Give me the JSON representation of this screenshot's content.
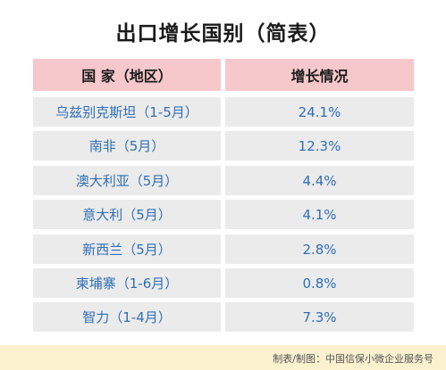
{
  "title": "出口增长国别（简表）",
  "table": {
    "headers": [
      "国 家（地区）",
      "增长情况"
    ],
    "rows": [
      {
        "country": "乌兹别克斯坦（1-5月）",
        "growth": "24.1%"
      },
      {
        "country": "南非（5月）",
        "growth": "12.3%"
      },
      {
        "country": "澳大利亚（5月）",
        "growth": "4.4%"
      },
      {
        "country": "意大利（5月）",
        "growth": "4.1%"
      },
      {
        "country": "新西兰（5月）",
        "growth": "2.8%"
      },
      {
        "country": "柬埔寨（1-6月）",
        "growth": "0.8%"
      },
      {
        "country": "智力（1-4月）",
        "growth": "7.3%"
      }
    ]
  },
  "footer": "制表/制图：中国信保小微企业服务号",
  "colors": {
    "header_bg": "#f7c8cb",
    "row_bg": "#ebebeb",
    "value_text": "#2f6fb5",
    "footer_bg": "#fbf1cf"
  }
}
